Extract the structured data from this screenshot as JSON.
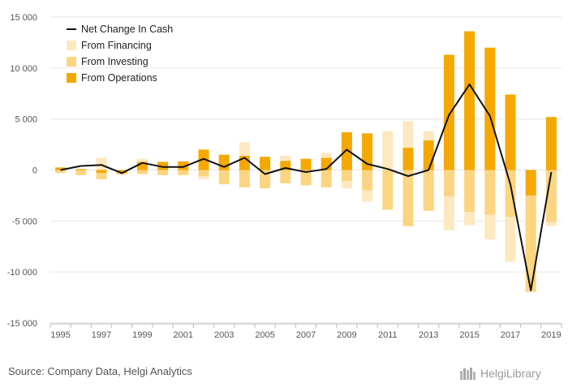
{
  "source_text": "Source: Company Data, Helgi Analytics",
  "logo_text": "HelgiLibrary",
  "colors": {
    "operations": "#f5a800",
    "investing": "#fcd582",
    "financing": "#fde8bf",
    "line": "#111111",
    "grid": "#e6e6e6"
  },
  "chart_data": {
    "type": "bar",
    "stacked": true,
    "grid": true,
    "legend_position": "top-left",
    "ylim": [
      -15000,
      15000
    ],
    "y_ticks": [
      15000,
      10000,
      5000,
      0,
      -5000,
      -10000,
      -15000
    ],
    "y_tick_labels": [
      "15 000",
      "10 000",
      "5 000",
      "0",
      "-5 000",
      "-10 000",
      "-15 000"
    ],
    "x_tick_labels": [
      "1995",
      "1997",
      "1999",
      "2001",
      "2003",
      "2005",
      "2007",
      "2009",
      "2011",
      "2013",
      "2015",
      "2017",
      "2019"
    ],
    "categories": [
      "1995",
      "1996",
      "1997",
      "1998",
      "1999",
      "2000",
      "2001",
      "2002",
      "2003",
      "2004",
      "2005",
      "2006",
      "2007",
      "2008",
      "2009",
      "2010",
      "2011",
      "2012",
      "2013",
      "2014",
      "2015",
      "2016",
      "2017",
      "2018",
      "2019"
    ],
    "series": [
      {
        "name": "From Operations",
        "values": [
          250,
          100,
          -300,
          -300,
          800,
          800,
          850,
          2000,
          1500,
          1400,
          1300,
          900,
          1100,
          1200,
          3700,
          3600,
          0,
          2200,
          2900,
          11300,
          13600,
          12000,
          7400,
          -2500,
          5200
        ]
      },
      {
        "name": "From Investing",
        "values": [
          -300,
          -500,
          -600,
          -150,
          -400,
          -500,
          -500,
          -600,
          -1400,
          -1700,
          -1800,
          -1300,
          -1500,
          -1700,
          -1100,
          -2000,
          -3900,
          -5500,
          -4000,
          -2600,
          -4100,
          -4400,
          -4600,
          -9400,
          -5100
        ]
      },
      {
        "name": "From Financing",
        "values": [
          0,
          0,
          1200,
          0,
          300,
          0,
          0,
          -300,
          0,
          1300,
          0,
          500,
          0,
          500,
          -700,
          -1100,
          3800,
          2600,
          900,
          -3300,
          -1300,
          -2400,
          -4400,
          -100,
          -400
        ]
      },
      {
        "name": "Net Change In Cash",
        "type": "line",
        "values": [
          0,
          400,
          500,
          -300,
          700,
          300,
          300,
          1100,
          300,
          1200,
          -400,
          200,
          -200,
          100,
          2000,
          600,
          100,
          -600,
          0,
          5400,
          8400,
          5300,
          -1400,
          -11800,
          -200
        ]
      }
    ]
  }
}
